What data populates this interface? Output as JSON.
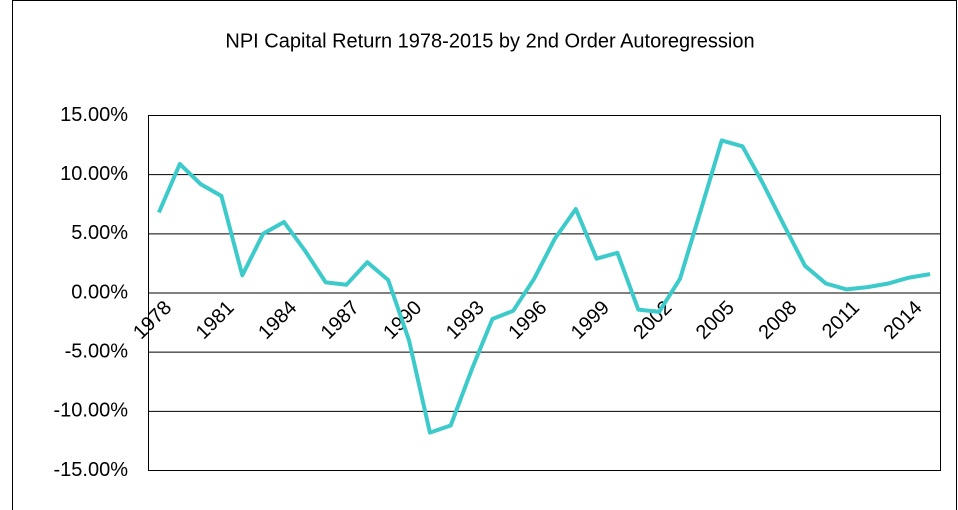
{
  "chart_data": {
    "type": "line",
    "title": "NPI Capital Return 1978-2015 by 2nd Order Autoregression",
    "categories": [
      "1978",
      null,
      null,
      "1981",
      null,
      null,
      "1984",
      null,
      null,
      "1987",
      null,
      null,
      "1990",
      null,
      null,
      "1993",
      null,
      null,
      "1996",
      null,
      null,
      "1999",
      null,
      null,
      "2002",
      null,
      null,
      "2005",
      null,
      null,
      "2008",
      null,
      null,
      "2011",
      null,
      null,
      "2014",
      null
    ],
    "values": [
      6.8,
      10.9,
      9.2,
      8.2,
      1.5,
      5.0,
      6.0,
      3.6,
      0.9,
      0.7,
      2.6,
      1.1,
      -4.0,
      -11.8,
      -11.2,
      -6.5,
      -2.2,
      -1.5,
      1.2,
      4.6,
      7.1,
      2.9,
      3.4,
      -1.4,
      -1.6,
      1.2,
      7.0,
      12.9,
      12.4,
      9.2,
      5.7,
      2.3,
      0.8,
      0.3,
      0.5,
      0.8,
      1.3,
      1.6
    ],
    "color": "#3ccaca",
    "ylim": [
      -15,
      15
    ],
    "yticks": [
      {
        "value": -15,
        "label": "-15.00%"
      },
      {
        "value": -10,
        "label": "-10.00%"
      },
      {
        "value": -5,
        "label": "-5.00%"
      },
      {
        "value": 0,
        "label": "0.00%"
      },
      {
        "value": 5,
        "label": "5.00%"
      },
      {
        "value": 10,
        "label": "10.00%"
      },
      {
        "value": 15,
        "label": "15.00%"
      }
    ],
    "grid": true
  }
}
